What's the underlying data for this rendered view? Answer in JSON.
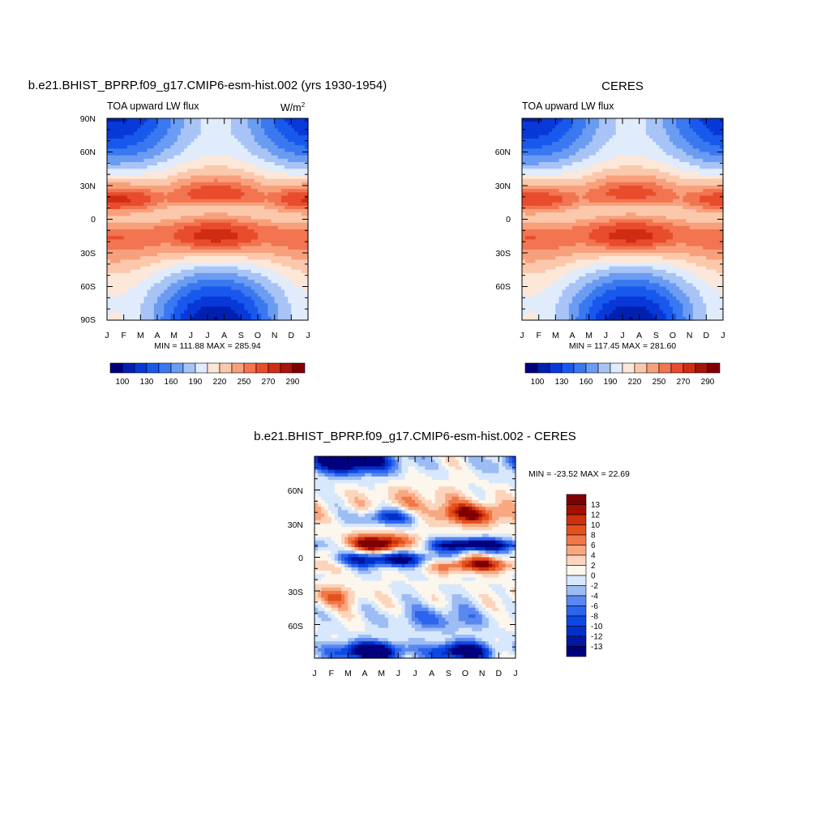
{
  "months": [
    "J",
    "F",
    "M",
    "A",
    "M",
    "J",
    "J",
    "A",
    "S",
    "O",
    "N",
    "D",
    "J"
  ],
  "palette_abs": [
    "#00007f",
    "#0020b0",
    "#0838d8",
    "#1858ec",
    "#3a78f0",
    "#6a9cf2",
    "#a8c4f6",
    "#e0ecfc",
    "#fde7d8",
    "#fbc8ac",
    "#f8a07c",
    "#f27450",
    "#e84c2c",
    "#d02c14",
    "#a81408",
    "#800000"
  ],
  "palette_diff": [
    "#00007f",
    "#0018a0",
    "#0030c8",
    "#0c48e4",
    "#2c64ec",
    "#5a88f0",
    "#9cbcf4",
    "#d8e8fc",
    "#fdf6ec",
    "#fcd4bc",
    "#f8a880",
    "#f07848",
    "#e4501c",
    "#cc300c",
    "#a41000",
    "#800000"
  ],
  "chart_data": [
    {
      "type": "heatmap",
      "title": "b.e21.BHIST_BPRP.f09_g17.CMIP6-esm-hist.002 (yrs 1930-1954)",
      "subtitle": "TOA upward LW flux",
      "units": "W/m",
      "units_sup": "2",
      "x_ticks": [
        "J",
        "F",
        "M",
        "A",
        "M",
        "J",
        "J",
        "A",
        "S",
        "O",
        "N",
        "D",
        "J"
      ],
      "y_ticks": [
        "90N",
        "60N",
        "30N",
        "0",
        "30S",
        "60S",
        "90S"
      ],
      "ylim": [
        -90,
        90
      ],
      "min_max": "MIN = 111.88 MAX = 285.94",
      "colorbar_labels": [
        "100",
        "130",
        "160",
        "190",
        "220",
        "250",
        "270",
        "290"
      ]
    },
    {
      "type": "heatmap",
      "title": "CERES",
      "subtitle": "TOA upward LW flux",
      "x_ticks": [
        "J",
        "F",
        "M",
        "A",
        "M",
        "J",
        "J",
        "A",
        "S",
        "O",
        "N",
        "D",
        "J"
      ],
      "y_ticks": [
        "60N",
        "30N",
        "0",
        "30S",
        "60S"
      ],
      "ylim": [
        -90,
        90
      ],
      "min_max": "MIN = 117.45 MAX = 281.60",
      "colorbar_labels": [
        "100",
        "130",
        "160",
        "190",
        "220",
        "250",
        "270",
        "290"
      ]
    },
    {
      "type": "heatmap",
      "title": "b.e21.BHIST_BPRP.f09_g17.CMIP6-esm-hist.002 - CERES",
      "x_ticks": [
        "J",
        "F",
        "M",
        "A",
        "M",
        "J",
        "J",
        "A",
        "S",
        "O",
        "N",
        "D",
        "J"
      ],
      "y_ticks": [
        "60N",
        "30N",
        "0",
        "30S",
        "60S"
      ],
      "ylim": [
        -90,
        90
      ],
      "min_max": "MIN = -23.52 MAX =  22.69",
      "colorbar_labels": [
        "13",
        "12",
        "10",
        "8",
        "6",
        "4",
        "2",
        "0",
        "-2",
        "-4",
        "-6",
        "-8",
        "-10",
        "-12",
        "-13"
      ]
    }
  ]
}
